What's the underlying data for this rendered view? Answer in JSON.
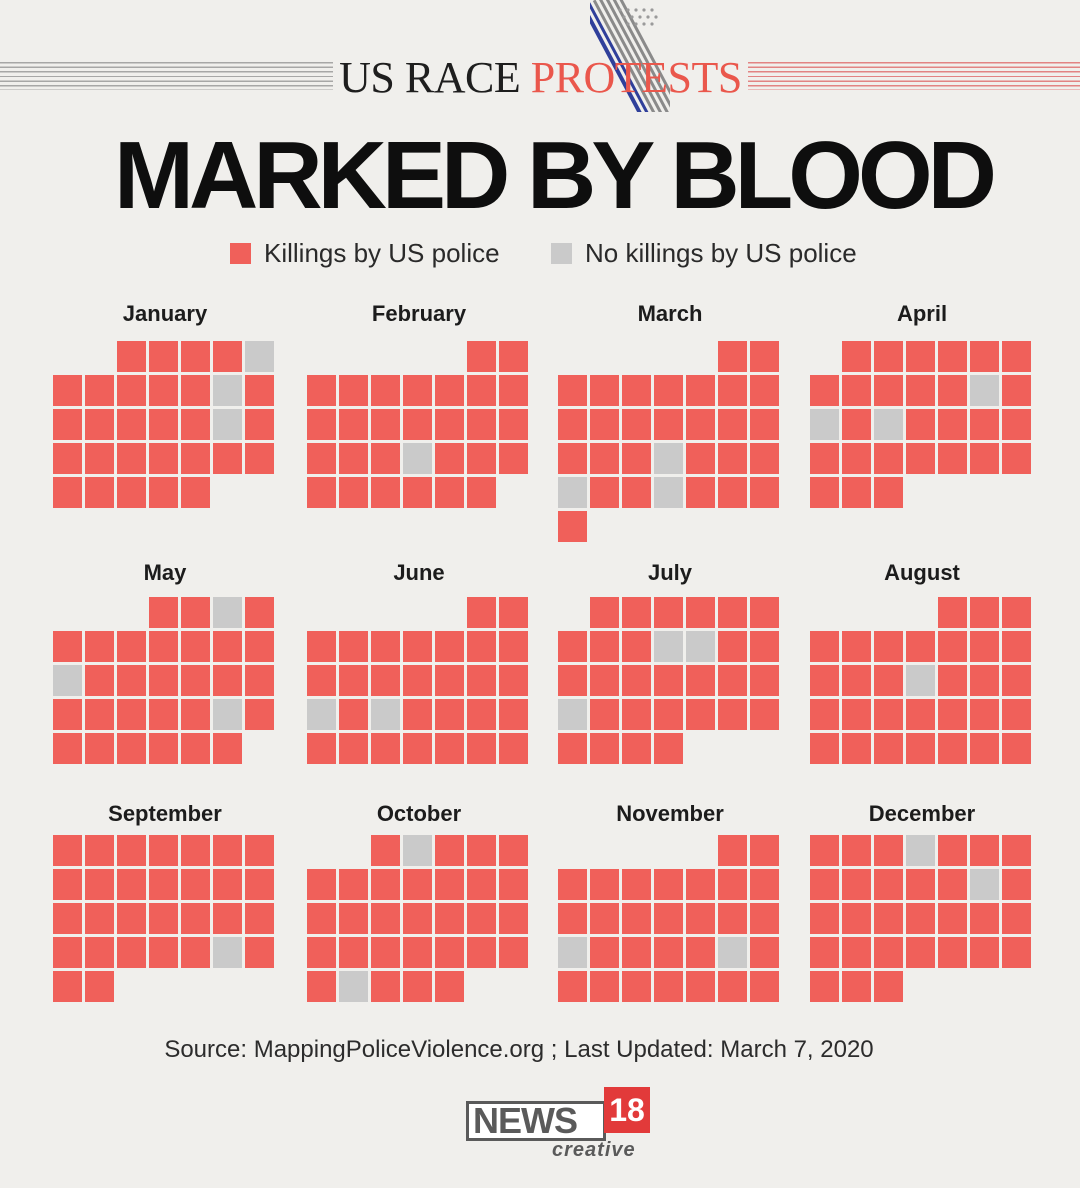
{
  "header": {
    "kicker_part1": "US RACE ",
    "kicker_part2": "PROTESTS",
    "title": "MARKED BY BLOOD"
  },
  "legend": {
    "killings_label": "Killings by US police",
    "no_killings_label": "No killings by US police"
  },
  "colors": {
    "killing": "#f0605a",
    "no_killing": "#cacaca",
    "accent": "#ea574c",
    "background": "#f0efec"
  },
  "icons": [
    "us-flag-stripes-icon"
  ],
  "chart_data": {
    "type": "calendar-heatmap",
    "categories": [
      "killing",
      "no_killing"
    ],
    "months": [
      {
        "name": "January",
        "start_col": 2,
        "days": 31,
        "no_killing_days": [
          5,
          11,
          18
        ]
      },
      {
        "name": "February",
        "start_col": 5,
        "days": 29,
        "no_killing_days": [
          20
        ]
      },
      {
        "name": "March",
        "start_col": 5,
        "days": 31,
        "no_killing_days": [
          20,
          24,
          27
        ]
      },
      {
        "name": "April",
        "start_col": 1,
        "days": 30,
        "no_killing_days": [
          12,
          14,
          16
        ]
      },
      {
        "name": "May",
        "start_col": 3,
        "days": 31,
        "no_killing_days": [
          3,
          12,
          24
        ]
      },
      {
        "name": "June",
        "start_col": 5,
        "days": 30,
        "no_killing_days": [
          17,
          19
        ]
      },
      {
        "name": "July",
        "start_col": 1,
        "days": 31,
        "no_killing_days": [
          10,
          11,
          21
        ]
      },
      {
        "name": "August",
        "start_col": 4,
        "days": 31,
        "no_killing_days": [
          14
        ]
      },
      {
        "name": "September",
        "start_col": 0,
        "days": 30,
        "no_killing_days": [
          27
        ]
      },
      {
        "name": "October",
        "start_col": 2,
        "days": 31,
        "no_killing_days": [
          2,
          28
        ]
      },
      {
        "name": "November",
        "start_col": 5,
        "days": 30,
        "no_killing_days": [
          17,
          22
        ]
      },
      {
        "name": "December",
        "start_col": 0,
        "days": 31,
        "no_killing_days": [
          4,
          13
        ]
      }
    ]
  },
  "footer": {
    "source": "Source: MappingPoliceViolence.org ;  Last Updated: March 7, 2020",
    "logo_main": "NEWS",
    "logo_number": "18",
    "logo_sub": "creative"
  }
}
